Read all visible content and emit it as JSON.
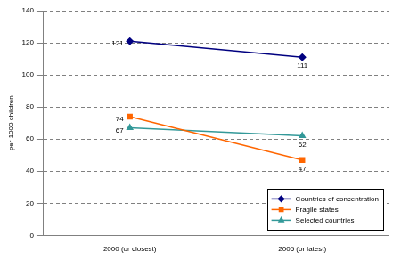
{
  "chart_data": {
    "type": "line",
    "categories": [
      "2000 (or closest)",
      "2005 (or latest)"
    ],
    "y_label": "per 1000 children",
    "series": [
      {
        "name": "Countries of concentration",
        "color": "#000080",
        "marker": "diamond",
        "values": [
          121,
          111
        ]
      },
      {
        "name": "Fragile states",
        "color": "#ff6600",
        "marker": "square",
        "values": [
          74,
          47
        ]
      },
      {
        "name": "Selected countries",
        "color": "#339999",
        "marker": "triangle",
        "values": [
          67,
          62
        ]
      }
    ],
    "ylim": [
      0,
      140
    ],
    "yticks": [
      0,
      20,
      40,
      60,
      80,
      100,
      120,
      140
    ],
    "grid": true,
    "legend": "lower right",
    "data_labels": true
  }
}
